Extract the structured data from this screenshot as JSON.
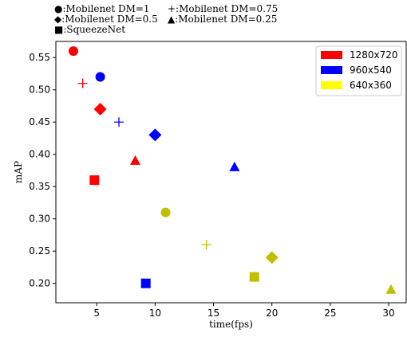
{
  "chart_data": {
    "type": "scatter",
    "title_lines": [
      [
        "●:Mobilenet DM=1",
        "+:Mobilenet DM=0.75"
      ],
      [
        "◆:Mobilenet DM=0.5",
        "▲:Mobilenet DM=0.25"
      ],
      [
        "■:SqueezeNet"
      ]
    ],
    "xlabel": "time(fps)",
    "ylabel": "mAP",
    "xlim": [
      1.5,
      31.5
    ],
    "ylim": [
      0.17,
      0.575
    ],
    "xticks": [
      5,
      10,
      15,
      20,
      25,
      30
    ],
    "yticks": [
      0.2,
      0.25,
      0.3,
      0.35,
      0.4,
      0.45,
      0.5,
      0.55
    ],
    "xtick_labels": [
      "5",
      "10",
      "15",
      "20",
      "25",
      "30"
    ],
    "ytick_labels": [
      "0.20",
      "0.25",
      "0.30",
      "0.35",
      "0.40",
      "0.45",
      "0.50",
      "0.55"
    ],
    "grid": false,
    "legend_position": "top-right",
    "series": [
      {
        "name": "1280x720",
        "color": "#ff0000",
        "points": [
          {
            "model": "Mobilenet DM=1",
            "marker": "circle",
            "x": 3.0,
            "y": 0.56
          },
          {
            "model": "Mobilenet DM=0.75",
            "marker": "plus",
            "x": 3.8,
            "y": 0.51
          },
          {
            "model": "Mobilenet DM=0.5",
            "marker": "diamond",
            "x": 5.3,
            "y": 0.47
          },
          {
            "model": "Mobilenet DM=0.25",
            "marker": "triangle",
            "x": 8.3,
            "y": 0.39
          },
          {
            "model": "SqueezeNet",
            "marker": "square",
            "x": 4.8,
            "y": 0.36
          }
        ]
      },
      {
        "name": "960x540",
        "color": "#0000ff",
        "points": [
          {
            "model": "Mobilenet DM=1",
            "marker": "circle",
            "x": 5.3,
            "y": 0.52
          },
          {
            "model": "Mobilenet DM=0.75",
            "marker": "plus",
            "x": 6.9,
            "y": 0.45
          },
          {
            "model": "Mobilenet DM=0.5",
            "marker": "diamond",
            "x": 10.0,
            "y": 0.43
          },
          {
            "model": "Mobilenet DM=0.25",
            "marker": "triangle",
            "x": 16.8,
            "y": 0.38
          },
          {
            "model": "SqueezeNet",
            "marker": "square",
            "x": 9.2,
            "y": 0.2
          }
        ]
      },
      {
        "name": "640x360",
        "color": "#bfbf00",
        "legend_color": "#ffff00",
        "points": [
          {
            "model": "Mobilenet DM=1",
            "marker": "circle",
            "x": 10.9,
            "y": 0.31
          },
          {
            "model": "Mobilenet DM=0.75",
            "marker": "plus",
            "x": 14.4,
            "y": 0.26
          },
          {
            "model": "Mobilenet DM=0.5",
            "marker": "diamond",
            "x": 20.0,
            "y": 0.24
          },
          {
            "model": "Mobilenet DM=0.25",
            "marker": "triangle",
            "x": 30.2,
            "y": 0.19
          },
          {
            "model": "SqueezeNet",
            "marker": "square",
            "x": 18.5,
            "y": 0.21
          }
        ]
      }
    ]
  }
}
